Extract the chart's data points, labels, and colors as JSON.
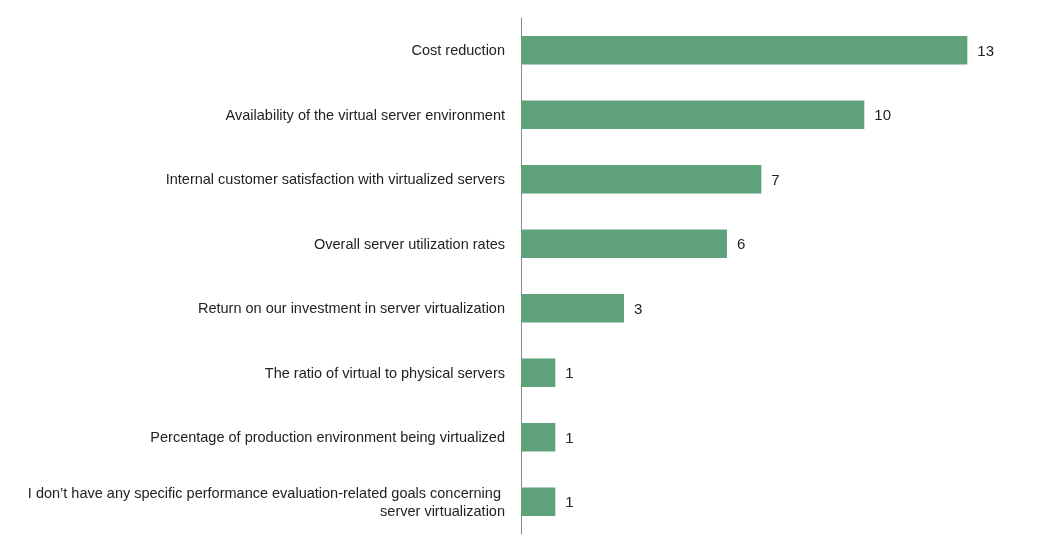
{
  "chart_data": {
    "type": "bar",
    "orientation": "horizontal",
    "categories": [
      "Cost reduction",
      "Availability of the virtual server environment",
      "Internal customer satisfaction with virtualized servers",
      "Overall server utilization rates",
      "Return on our investment in server virtualization",
      "The ratio of virtual to physical servers",
      "Percentage of production environment being virtualized",
      "I don’t have any specific performance evaluation-related goals concerning server virtualization"
    ],
    "values": [
      13,
      10,
      7,
      6,
      3,
      1,
      1,
      1
    ],
    "color": "#5fa27a",
    "data_labels": true,
    "tick_labels": "y"
  }
}
